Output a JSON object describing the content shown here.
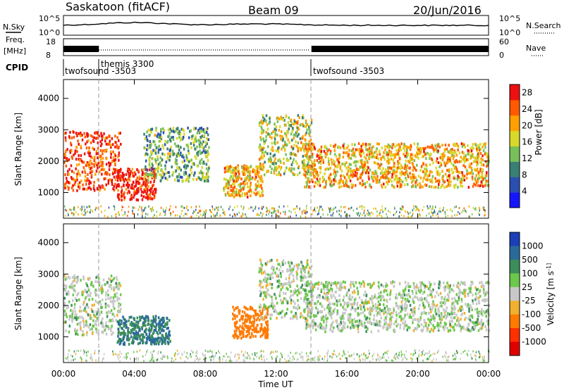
{
  "header": {
    "station": "Saskatoon (fitACF)",
    "beam": "Beam 09",
    "date": "20/Jun/2016"
  },
  "strips": {
    "nsky_label": "N.Sky",
    "nsky_ticks": [
      "10^5",
      "10^0"
    ],
    "nsearch_label": "N.Search",
    "nsearch_ticks": [
      "10^5",
      "10^0"
    ],
    "freq_label_line1": "Freq.",
    "freq_label_line2": "[MHz]",
    "freq_ticks": [
      "18",
      "8"
    ],
    "nave_label": "Nave",
    "nave_ticks": [
      "60",
      "0"
    ],
    "cpid_label": "CPID",
    "cpid_segments": [
      "twofsound -3503",
      "themis 3300",
      "twofsound -3503"
    ]
  },
  "chart_data": [
    {
      "type": "heatmap",
      "title": "",
      "xlabel": "Time UT",
      "ylabel": "Slant Range [km]",
      "x_ticks": [
        "00:00",
        "04:00",
        "08:00",
        "12:00",
        "16:00",
        "20:00",
        "00:00"
      ],
      "xlim_hours": [
        0,
        24
      ],
      "y_ticks": [
        1000,
        2000,
        3000,
        4000
      ],
      "ylim": [
        180,
        4600
      ],
      "colorbar_label": "Power [dB]",
      "colorbar_ticks": [
        4,
        8,
        12,
        16,
        20,
        24,
        28
      ],
      "colorbar_range": [
        0,
        30
      ],
      "colorbar_colors": [
        "#1515ff",
        "#2a4fb0",
        "#3a7f74",
        "#78c05a",
        "#d8d82a",
        "#ffa000",
        "#ff5a00",
        "#ee1010"
      ],
      "echo_regions": [
        {
          "t0": 0.0,
          "t1": 3.2,
          "r0": 1100,
          "r1": 3000,
          "peak_dB": 26
        },
        {
          "t0": 3.0,
          "t1": 5.2,
          "r0": 800,
          "r1": 1800,
          "peak_dB": 28
        },
        {
          "t0": 4.5,
          "t1": 8.2,
          "r0": 1400,
          "r1": 3100,
          "peak_dB": 12
        },
        {
          "t0": 9.0,
          "t1": 11.2,
          "r0": 900,
          "r1": 1900,
          "peak_dB": 20
        },
        {
          "t0": 11.0,
          "t1": 14.0,
          "r0": 1600,
          "r1": 3500,
          "peak_dB": 16
        },
        {
          "t0": 13.5,
          "t1": 24.0,
          "r0": 1200,
          "r1": 2600,
          "peak_dB": 20
        }
      ]
    },
    {
      "type": "heatmap",
      "title": "",
      "xlabel": "Time UT",
      "ylabel": "Slant Range [km]",
      "x_ticks": [
        "00:00",
        "04:00",
        "08:00",
        "12:00",
        "16:00",
        "20:00",
        "00:00"
      ],
      "xlim_hours": [
        0,
        24
      ],
      "y_ticks": [
        1000,
        2000,
        3000,
        4000
      ],
      "ylim": [
        180,
        4600
      ],
      "colorbar_label": "Velocity [m s^-1]",
      "colorbar_ticks": [
        1000,
        500,
        100,
        25,
        -25,
        -100,
        -500,
        -1000
      ],
      "colorbar_colors": [
        "#1a3fb8",
        "#2a6a9a",
        "#3b8d5a",
        "#6cc84a",
        "#c8c8c8",
        "#f0b030",
        "#ff7a00",
        "#ff3000",
        "#e00000"
      ],
      "echo_regions": [
        {
          "t0": 0.0,
          "t1": 3.2,
          "r0": 1100,
          "r1": 3000,
          "vel": 0
        },
        {
          "t0": 3.0,
          "t1": 6.0,
          "r0": 800,
          "r1": 1700,
          "vel": 100
        },
        {
          "t0": 9.5,
          "t1": 11.5,
          "r0": 1000,
          "r1": 2000,
          "vel": -300
        },
        {
          "t0": 11.0,
          "t1": 14.0,
          "r0": 1600,
          "r1": 3500,
          "vel": 0
        },
        {
          "t0": 13.5,
          "t1": 24.0,
          "r0": 1200,
          "r1": 2800,
          "vel": 0
        }
      ]
    }
  ]
}
